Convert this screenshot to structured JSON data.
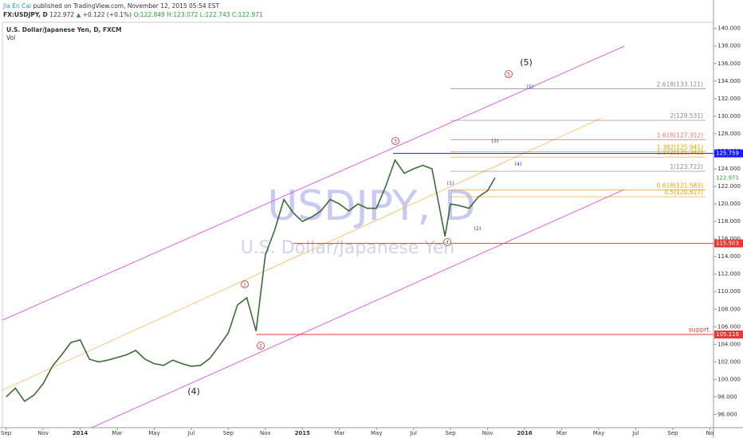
{
  "header": {
    "author": "Jia En Cai",
    "published": "published on TradingView.com, November 12, 2015 05:54 EST",
    "symbol": "FX:USDJPY, D",
    "last": "122.972",
    "arrow": "▲",
    "change": "+0.122 (+0.1%)",
    "ohlc": "O:122.849 H:123.072 L:122.743 C:122.971"
  },
  "chart_data": {
    "type": "line",
    "title": "U.S. Dollar/Japanese Yen, D, FXCM",
    "subtitle": "Vol",
    "watermark": "USDJPY, D",
    "watermark_subtitle": "U.S. Dollar/Japanese Yen",
    "x": [
      0,
      0.5,
      1,
      1.5,
      2,
      2.5,
      3,
      3.5,
      4,
      4.5,
      5,
      5.5,
      6,
      6.5,
      7,
      7.5,
      8,
      8.5,
      9,
      9.5,
      10,
      10.5,
      11,
      11.5,
      12,
      12.5,
      13,
      13.5,
      14,
      14.5,
      15,
      15.5,
      16,
      16.5,
      17,
      17.5,
      18,
      18.5,
      19,
      19.5,
      20,
      20.5,
      21,
      21.5,
      22,
      22.5,
      23,
      23.7,
      24,
      24.5,
      25,
      25.5,
      26,
      26.4
    ],
    "values": [
      98,
      99,
      97.5,
      98.2,
      99.5,
      101.5,
      102.8,
      104.2,
      104.5,
      102.3,
      102,
      102.2,
      102.5,
      102.8,
      103.3,
      102.3,
      101.8,
      101.6,
      102.2,
      101.8,
      101.5,
      101.6,
      102.4,
      103.8,
      105.3,
      108.5,
      109.3,
      105.5,
      114.2,
      117,
      120.5,
      119,
      118,
      118.5,
      119.2,
      120.5,
      120,
      119.2,
      120,
      119.5,
      119.5,
      122,
      125,
      123.5,
      124,
      124.4,
      124,
      116.3,
      120,
      119.8,
      119.5,
      120.8,
      121.5,
      122.97
    ],
    "color": "#3d6b3a",
    "xlim": [
      -0.2,
      38.2
    ],
    "xticks": [
      {
        "value": 0,
        "label": "Sep"
      },
      {
        "value": 2,
        "label": "Nov"
      },
      {
        "value": 4,
        "label": "2014"
      },
      {
        "value": 6,
        "label": "Mar"
      },
      {
        "value": 8,
        "label": "May"
      },
      {
        "value": 10,
        "label": "Jul"
      },
      {
        "value": 12,
        "label": "Sep"
      },
      {
        "value": 14,
        "label": "Nov"
      },
      {
        "value": 16,
        "label": "2015"
      },
      {
        "value": 18,
        "label": "Mar"
      },
      {
        "value": 20,
        "label": "May"
      },
      {
        "value": 22,
        "label": "Jul"
      },
      {
        "value": 24,
        "label": "Sep"
      },
      {
        "value": 26,
        "label": "Nov"
      },
      {
        "value": 28,
        "label": "2016"
      },
      {
        "value": 30,
        "label": "Mar"
      },
      {
        "value": 32,
        "label": "May"
      },
      {
        "value": 34,
        "label": "Jul"
      },
      {
        "value": 36,
        "label": "Sep"
      },
      {
        "value": 38,
        "label": "No"
      }
    ],
    "ylim": [
      94.5,
      140.7
    ],
    "yticks": [
      {
        "value": 96,
        "label": "96.000"
      },
      {
        "value": 98,
        "label": "98.000"
      },
      {
        "value": 100,
        "label": "100.000"
      },
      {
        "value": 102,
        "label": "102.000"
      },
      {
        "value": 104,
        "label": "104.000"
      },
      {
        "value": 106,
        "label": "106.000"
      },
      {
        "value": 108,
        "label": "108.000"
      },
      {
        "value": 110,
        "label": "110.000"
      },
      {
        "value": 112,
        "label": "112.000"
      },
      {
        "value": 114,
        "label": "114.000"
      },
      {
        "value": 116,
        "label": "116.000"
      },
      {
        "value": 118,
        "label": "118.000"
      },
      {
        "value": 120,
        "label": "120.000"
      },
      {
        "value": 122,
        "label": "122.000"
      },
      {
        "value": 124,
        "label": "124.000"
      },
      {
        "value": 126,
        "label": "126.000"
      },
      {
        "value": 128,
        "label": "128.000"
      },
      {
        "value": 130,
        "label": "130.000"
      },
      {
        "value": 132,
        "label": "132.000"
      },
      {
        "value": 134,
        "label": "134.000"
      },
      {
        "value": 136,
        "label": "136.000"
      },
      {
        "value": 138,
        "label": "138.000"
      },
      {
        "value": 140,
        "label": "140.000"
      }
    ],
    "last_price": 122.971,
    "last_price_color": "#2a9d3a",
    "price_levels": [
      {
        "value": 125.759,
        "color": "#1a1aff",
        "from_x": 20.9
      },
      {
        "value": 115.503,
        "color": "#e53935",
        "from_x": 15.5
      },
      {
        "value": 105.116,
        "color": "#e53935",
        "from_x": 13.5,
        "text": "supprt."
      }
    ],
    "fib_levels": [
      {
        "value": 133.121,
        "label": "2.618(133.121)",
        "color": "#888"
      },
      {
        "value": 129.531,
        "label": "2(129.531)",
        "color": "#888"
      },
      {
        "value": 127.312,
        "label": "1.618(127.312)",
        "color": "#e57373"
      },
      {
        "value": 125.941,
        "label": "1.382(125.941)",
        "color": "#f39c12"
      },
      {
        "value": 125.342,
        "label": "1.272(125.342)",
        "color": "#f39c12"
      },
      {
        "value": 123.722,
        "label": "1(123.722)",
        "color": "#888"
      },
      {
        "value": 121.583,
        "label": "0.618(121.583)",
        "color": "#f39c12"
      },
      {
        "value": 120.817,
        "label": "0.5(120.817)",
        "color": "#f39c12"
      }
    ],
    "fib_from_x": 24,
    "waves_circled": [
      "1",
      "2",
      "3",
      "4",
      "5"
    ],
    "waves_major": [
      "(4)",
      "(5)"
    ],
    "waves_minor": [
      "(1)",
      "(2)",
      "(3)",
      "(4)",
      "(5)"
    ]
  }
}
